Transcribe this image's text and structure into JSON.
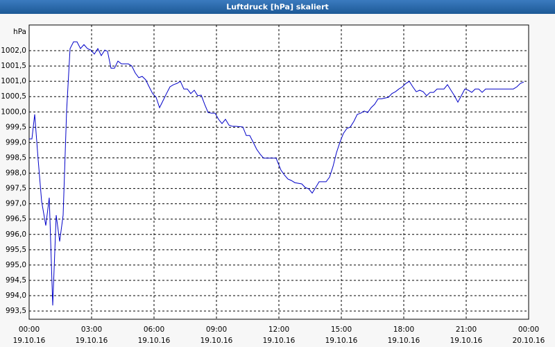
{
  "chart_data": {
    "type": "line",
    "title": "Luftdruck [hPa] skaliert",
    "ylabel": "hPa",
    "color": "#0000c8",
    "grid": true,
    "x": [
      "19.10.16 00:00",
      "19.10.16 00:08",
      "19.10.16 00:16",
      "19.10.16 00:26",
      "19.10.16 00:36",
      "19.10.16 00:48",
      "19.10.16 00:58",
      "19.10.16 01:08",
      "19.10.16 01:18",
      "19.10.16 01:28",
      "19.10.16 01:38",
      "19.10.16 01:48",
      "19.10.16 01:58",
      "19.10.16 02:08",
      "19.10.16 02:18",
      "19.10.16 02:28",
      "19.10.16 02:38",
      "19.10.16 02:48",
      "19.10.16 02:58",
      "19.10.16 03:08",
      "19.10.16 03:18",
      "19.10.16 03:28",
      "19.10.16 03:38",
      "19.10.16 03:46",
      "19.10.16 03:56",
      "19.10.16 04:06",
      "19.10.16 04:16",
      "19.10.16 04:26",
      "19.10.16 04:46",
      "19.10.16 04:56",
      "19.10.16 05:06",
      "19.10.16 05:16",
      "19.10.16 05:26",
      "19.10.16 05:36",
      "19.10.16 05:46",
      "19.10.16 05:56",
      "19.10.16 06:06",
      "19.10.16 06:16",
      "19.10.16 06:26",
      "19.10.16 06:36",
      "19.10.16 06:46",
      "19.10.16 06:56",
      "19.10.16 07:06",
      "19.10.16 07:16",
      "19.10.16 07:26",
      "19.10.16 07:36",
      "19.10.16 07:46",
      "19.10.16 07:56",
      "19.10.16 08:06",
      "19.10.16 08:16",
      "19.10.16 08:26",
      "19.10.16 08:36",
      "19.10.16 08:46",
      "19.10.16 08:56",
      "19.10.16 09:06",
      "19.10.16 09:16",
      "19.10.16 09:26",
      "19.10.16 09:36",
      "19.10.16 09:46",
      "19.10.16 09:56",
      "19.10.16 10:16",
      "19.10.16 10:26",
      "19.10.16 10:36",
      "19.10.16 10:46",
      "19.10.16 10:56",
      "19.10.16 11:06",
      "19.10.16 11:16",
      "19.10.16 11:36",
      "19.10.16 11:52",
      "19.10.16 12:06",
      "19.10.16 12:16",
      "19.10.16 12:26",
      "19.10.16 12:36",
      "19.10.16 12:46",
      "19.10.16 13:06",
      "19.10.16 13:16",
      "19.10.16 13:26",
      "19.10.16 13:36",
      "19.10.16 13:46",
      "19.10.16 13:56",
      "19.10.16 14:16",
      "19.10.16 14:26",
      "19.10.16 14:36",
      "19.10.16 14:46",
      "19.10.16 14:56",
      "19.10.16 15:06",
      "19.10.16 15:16",
      "19.10.16 15:26",
      "19.10.16 15:36",
      "19.10.16 15:46",
      "19.10.16 15:56",
      "19.10.16 16:06",
      "19.10.16 16:16",
      "19.10.16 16:26",
      "19.10.16 16:36",
      "19.10.16 16:46",
      "19.10.16 16:56",
      "19.10.16 17:16",
      "19.10.16 17:26",
      "19.10.16 17:36",
      "19.10.16 17:46",
      "19.10.16 17:56",
      "19.10.16 18:06",
      "19.10.16 18:16",
      "19.10.16 18:26",
      "19.10.16 18:36",
      "19.10.16 18:46",
      "19.10.16 18:56",
      "19.10.16 19:06",
      "19.10.16 19:16",
      "19.10.16 19:26",
      "19.10.16 19:36",
      "19.10.16 19:56",
      "19.10.16 20:06",
      "19.10.16 20:16",
      "19.10.16 20:26",
      "19.10.16 20:36",
      "19.10.16 20:46",
      "19.10.16 20:56",
      "19.10.16 21:06",
      "19.10.16 21:16",
      "19.10.16 21:26",
      "19.10.16 21:36",
      "19.10.16 21:46",
      "19.10.16 21:56",
      "19.10.16 23:16",
      "19.10.16 23:26",
      "19.10.16 23:36",
      "19.10.16 23:46"
    ],
    "values": [
      999.12,
      999.12,
      999.92,
      998.44,
      997.08,
      996.29,
      997.2,
      993.68,
      996.63,
      995.77,
      996.63,
      1000.03,
      1002.07,
      1002.29,
      1002.29,
      1002.07,
      1002.2,
      1002.07,
      1002.02,
      1001.89,
      1002.07,
      1001.84,
      1002.02,
      1001.98,
      1001.43,
      1001.43,
      1001.66,
      1001.57,
      1001.57,
      1001.5,
      1001.27,
      1001.12,
      1001.16,
      1001.05,
      1000.82,
      1000.6,
      1000.48,
      1000.14,
      1000.37,
      1000.6,
      1000.82,
      1000.89,
      1000.93,
      1001.0,
      1000.75,
      1000.75,
      1000.6,
      1000.71,
      1000.53,
      1000.55,
      1000.25,
      999.98,
      999.96,
      999.96,
      999.76,
      999.62,
      999.76,
      999.57,
      999.53,
      999.53,
      999.51,
      999.23,
      999.23,
      999.01,
      998.78,
      998.62,
      998.49,
      998.49,
      998.49,
      998.1,
      997.94,
      997.81,
      997.76,
      997.69,
      997.65,
      997.53,
      997.49,
      997.35,
      997.53,
      997.72,
      997.72,
      997.87,
      998.22,
      998.67,
      999.01,
      999.3,
      999.46,
      999.51,
      999.69,
      999.92,
      999.96,
      1000.03,
      999.98,
      1000.14,
      1000.25,
      1000.43,
      1000.43,
      1000.48,
      1000.6,
      1000.66,
      1000.75,
      1000.82,
      1000.93,
      1001.0,
      1000.82,
      1000.66,
      1000.71,
      1000.66,
      1000.53,
      1000.64,
      1000.64,
      1000.75,
      1000.75,
      1000.89,
      1000.71,
      1000.53,
      1000.32,
      1000.53,
      1000.75,
      1000.71,
      1000.64,
      1000.75,
      1000.75,
      1000.64,
      1000.75,
      1000.75,
      1000.82,
      1000.93,
      1000.98
    ],
    "xlim": [
      "19.10.16 00:00",
      "20.10.16 00:00"
    ],
    "xticks": [
      {
        "value": "19.10.16 00:00",
        "label": [
          "00:00",
          "19.10.16"
        ]
      },
      {
        "value": "19.10.16 03:00",
        "label": [
          "03:00",
          "19.10.16"
        ]
      },
      {
        "value": "19.10.16 06:00",
        "label": [
          "06:00",
          "19.10.16"
        ]
      },
      {
        "value": "19.10.16 09:00",
        "label": [
          "09:00",
          "19.10.16"
        ]
      },
      {
        "value": "19.10.16 12:00",
        "label": [
          "12:00",
          "19.10.16"
        ]
      },
      {
        "value": "19.10.16 15:00",
        "label": [
          "15:00",
          "19.10.16"
        ]
      },
      {
        "value": "19.10.16 18:00",
        "label": [
          "18:00",
          "19.10.16"
        ]
      },
      {
        "value": "19.10.16 21:00",
        "label": [
          "21:00",
          "19.10.16"
        ]
      },
      {
        "value": "20.10.16 00:00",
        "label": [
          "00:00",
          "20.10.16"
        ]
      }
    ],
    "ylim": [
      993.23,
      1002.84
    ],
    "yticks": [
      {
        "value": 993.5,
        "label": "993,5"
      },
      {
        "value": 994,
        "label": "994,0"
      },
      {
        "value": 994.5,
        "label": "994,5"
      },
      {
        "value": 995,
        "label": "995,0"
      },
      {
        "value": 995.5,
        "label": "995,5"
      },
      {
        "value": 996,
        "label": "996,0"
      },
      {
        "value": 996.5,
        "label": "996,5"
      },
      {
        "value": 997,
        "label": "997,0"
      },
      {
        "value": 997.5,
        "label": "997,5"
      },
      {
        "value": 998,
        "label": "998,0"
      },
      {
        "value": 998.5,
        "label": "998,5"
      },
      {
        "value": 999,
        "label": "999,0"
      },
      {
        "value": 999.5,
        "label": "999,5"
      },
      {
        "value": 1000,
        "label": "1000,0"
      },
      {
        "value": 1000.5,
        "label": "1000,5"
      },
      {
        "value": 1001,
        "label": "1001,0"
      },
      {
        "value": 1001.5,
        "label": "1001,5"
      },
      {
        "value": 1002,
        "label": "1002,0"
      }
    ]
  }
}
